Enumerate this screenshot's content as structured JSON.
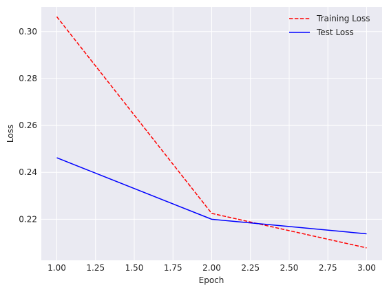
{
  "chart_data": {
    "type": "line",
    "title": "",
    "xlabel": "Epoch",
    "ylabel": "Loss",
    "x": [
      1.0,
      2.0,
      3.0
    ],
    "xlim": [
      0.9,
      3.1
    ],
    "ylim": [
      0.2025,
      0.3105
    ],
    "xticks": [
      1.0,
      1.25,
      1.5,
      1.75,
      2.0,
      2.25,
      2.5,
      2.75,
      3.0
    ],
    "xtick_labels": [
      "1.00",
      "1.25",
      "1.50",
      "1.75",
      "2.00",
      "2.25",
      "2.50",
      "2.75",
      "3.00"
    ],
    "yticks": [
      0.22,
      0.24,
      0.26,
      0.28,
      0.3
    ],
    "ytick_labels": [
      "0.22",
      "0.24",
      "0.26",
      "0.28",
      "0.30"
    ],
    "grid": true,
    "legend_position": "top-right",
    "series": [
      {
        "name": "Training Loss",
        "values": [
          0.3063,
          0.2225,
          0.2078
        ],
        "color": "#ff0000",
        "style": "dashed"
      },
      {
        "name": "Test Loss",
        "values": [
          0.2462,
          0.22,
          0.2138
        ],
        "color": "#0000ff",
        "style": "solid"
      }
    ],
    "colors": {
      "plot_background": "#eaeaf2",
      "grid": "#ffffff"
    }
  }
}
